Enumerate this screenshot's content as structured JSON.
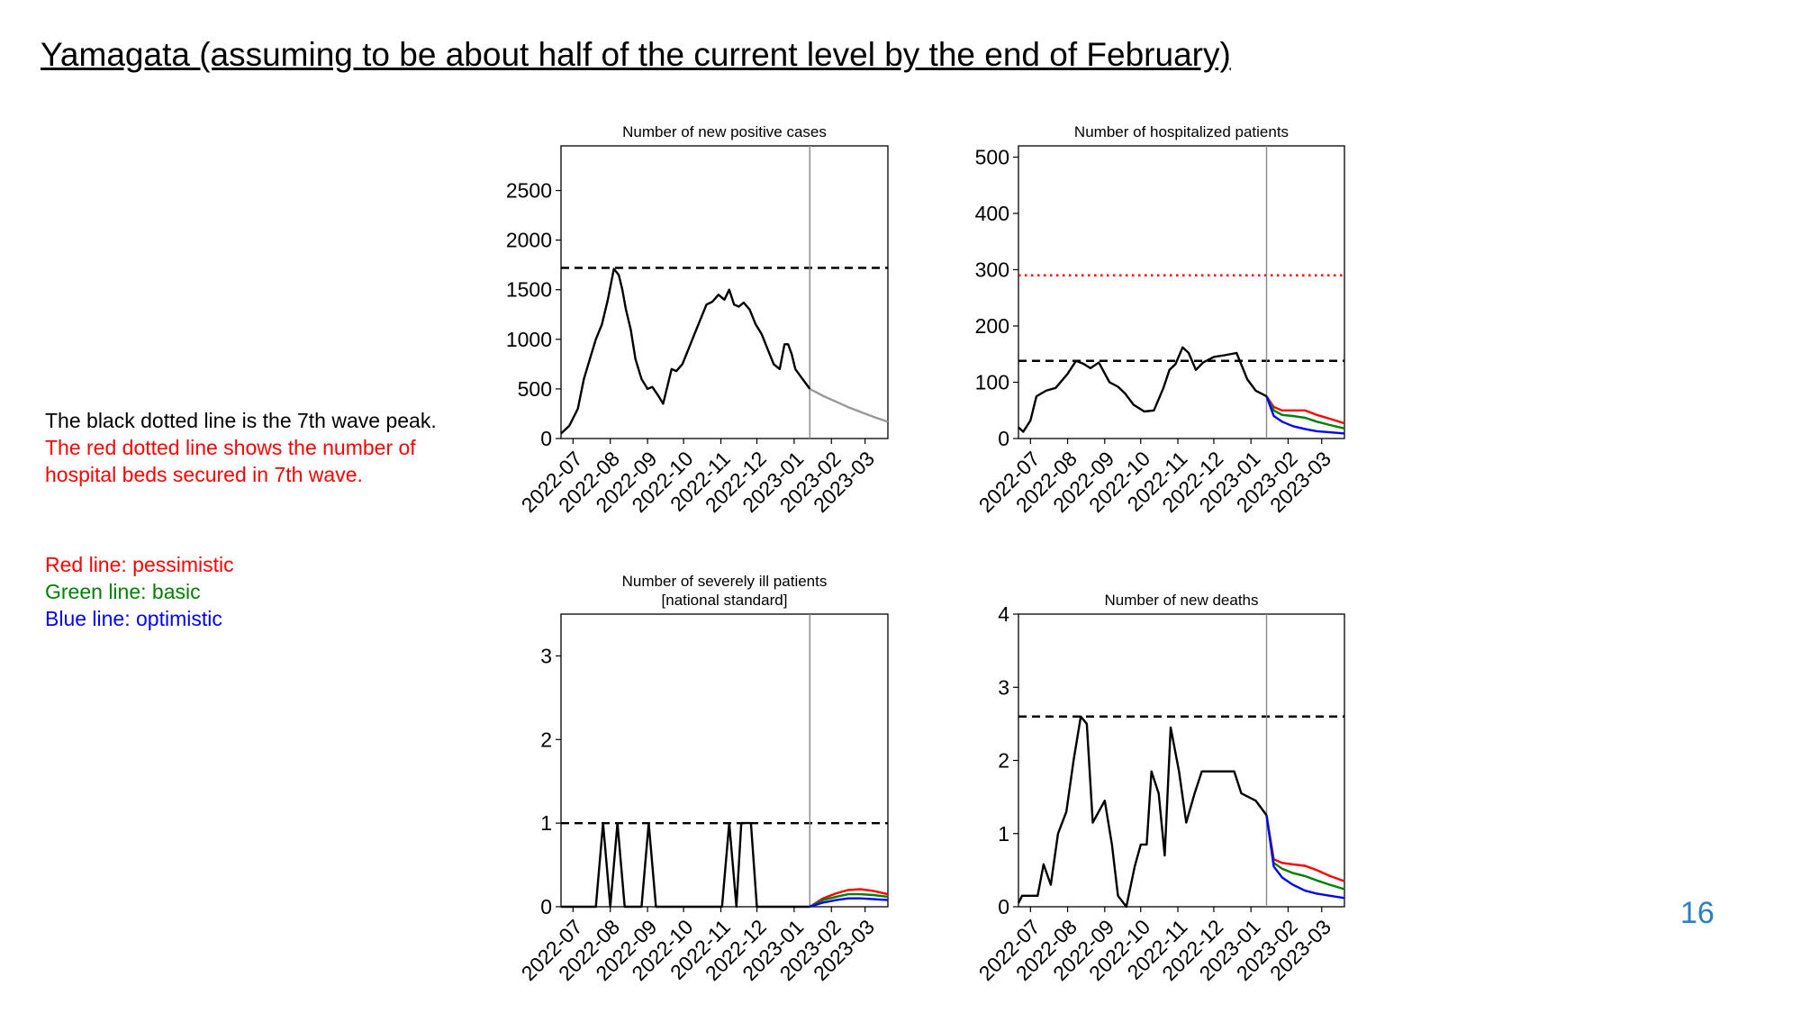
{
  "slide": {
    "title": "Yamagata (assuming to be about half of the current level by the end of February)",
    "page_number": "16"
  },
  "notes": [
    {
      "text": "The black dotted line is the 7th wave peak.",
      "color": "#000000"
    },
    {
      "text": "The red dotted line shows the number of",
      "color": "#ff0000"
    },
    {
      "text": "hospital beds secured in 7th wave.",
      "color": "#ff0000"
    }
  ],
  "legend": [
    {
      "text": "Red line: pessimistic",
      "color": "#ff0000"
    },
    {
      "text": "Green line: basic",
      "color": "#008000"
    },
    {
      "text": "Blue line: optimistic",
      "color": "#0000ff"
    }
  ],
  "colors": {
    "actual": "#000000",
    "pessimistic": "#ff0000",
    "basic": "#008000",
    "optimistic": "#0000ff",
    "forecast_gray": "#999999",
    "beds_line": "#ff0000",
    "peak_line": "#000000"
  },
  "chart_data": [
    {
      "type": "line",
      "title": [
        "Number of new positive cases"
      ],
      "x_ticks": [
        "2022-07",
        "2022-08",
        "2022-09",
        "2022-10",
        "2022-11",
        "2022-12",
        "2023-01",
        "2023-02",
        "2023-03"
      ],
      "xlim": [
        "2022-06-21",
        "2023-03-20"
      ],
      "ylim": [
        0,
        2950
      ],
      "y_ticks": [
        0,
        500,
        1000,
        1500,
        2000,
        2500
      ],
      "grid": false,
      "current_date": "2023-01-14",
      "reference_lines": [
        {
          "label": "7th wave peak",
          "value": 1720,
          "style": "dashed",
          "color": "#000000"
        }
      ],
      "actual": {
        "x": [
          "2022-06-21",
          "2022-06-28",
          "2022-07-05",
          "2022-07-10",
          "2022-07-15",
          "2022-07-20",
          "2022-07-25",
          "2022-07-30",
          "2022-08-04",
          "2022-08-08",
          "2022-08-11",
          "2022-08-14",
          "2022-08-18",
          "2022-08-22",
          "2022-08-27",
          "2022-09-01",
          "2022-09-05",
          "2022-09-10",
          "2022-09-14",
          "2022-09-18",
          "2022-09-21",
          "2022-09-25",
          "2022-09-30",
          "2022-10-05",
          "2022-10-10",
          "2022-10-15",
          "2022-10-20",
          "2022-10-25",
          "2022-10-30",
          "2022-11-04",
          "2022-11-08",
          "2022-11-12",
          "2022-11-16",
          "2022-11-20",
          "2022-11-25",
          "2022-11-30",
          "2022-12-05",
          "2022-12-10",
          "2022-12-15",
          "2022-12-20",
          "2022-12-24",
          "2022-12-27",
          "2022-12-30",
          "2023-01-02",
          "2023-01-05",
          "2023-01-08",
          "2023-01-11",
          "2023-01-14"
        ],
        "y": [
          50,
          130,
          300,
          600,
          800,
          1000,
          1150,
          1400,
          1710,
          1650,
          1500,
          1300,
          1100,
          800,
          600,
          500,
          520,
          430,
          350,
          550,
          700,
          680,
          750,
          900,
          1050,
          1200,
          1350,
          1380,
          1450,
          1400,
          1500,
          1350,
          1330,
          1370,
          1300,
          1150,
          1050,
          900,
          750,
          700,
          950,
          950,
          850,
          700,
          650,
          600,
          550,
          500
        ]
      },
      "forecast": [
        {
          "name": "forecast",
          "color": "#999999",
          "x": [
            "2023-01-14",
            "2023-01-25",
            "2023-02-05",
            "2023-02-16",
            "2023-02-27",
            "2023-03-10",
            "2023-03-20"
          ],
          "y": [
            500,
            430,
            370,
            310,
            260,
            210,
            170
          ]
        }
      ]
    },
    {
      "type": "line",
      "title": [
        "Number of hospitalized patients"
      ],
      "x_ticks": [
        "2022-07",
        "2022-08",
        "2022-09",
        "2022-10",
        "2022-11",
        "2022-12",
        "2023-01",
        "2023-02",
        "2023-03"
      ],
      "xlim": [
        "2022-06-21",
        "2023-03-20"
      ],
      "ylim": [
        0,
        520
      ],
      "y_ticks": [
        0,
        100,
        200,
        300,
        400,
        500
      ],
      "grid": false,
      "current_date": "2023-01-14",
      "reference_lines": [
        {
          "label": "7th wave peak",
          "value": 138,
          "style": "dashed",
          "color": "#000000"
        },
        {
          "label": "hospital beds secured in 7th wave",
          "value": 290,
          "style": "dotted",
          "color": "#ff0000"
        }
      ],
      "actual": {
        "x": [
          "2022-06-21",
          "2022-06-25",
          "2022-07-01",
          "2022-07-06",
          "2022-07-14",
          "2022-07-22",
          "2022-08-01",
          "2022-08-08",
          "2022-08-14",
          "2022-08-20",
          "2022-08-27",
          "2022-09-05",
          "2022-09-12",
          "2022-09-18",
          "2022-09-25",
          "2022-10-04",
          "2022-10-12",
          "2022-10-20",
          "2022-10-25",
          "2022-10-30",
          "2022-11-05",
          "2022-11-10",
          "2022-11-16",
          "2022-11-22",
          "2022-12-01",
          "2022-12-10",
          "2022-12-20",
          "2022-12-29",
          "2023-01-05",
          "2023-01-14"
        ],
        "y": [
          20,
          12,
          32,
          75,
          85,
          90,
          115,
          138,
          133,
          125,
          135,
          100,
          92,
          80,
          60,
          48,
          50,
          90,
          122,
          132,
          162,
          152,
          122,
          135,
          145,
          148,
          152,
          105,
          85,
          75
        ]
      },
      "forecast": [
        {
          "name": "pessimistic",
          "color": "#ff0000",
          "x": [
            "2023-01-14",
            "2023-01-20",
            "2023-01-27",
            "2023-02-05",
            "2023-02-15",
            "2023-02-25",
            "2023-03-08",
            "2023-03-20"
          ],
          "y": [
            75,
            56,
            50,
            50,
            50,
            42,
            35,
            27
          ]
        },
        {
          "name": "basic",
          "color": "#008000",
          "x": [
            "2023-01-14",
            "2023-01-20",
            "2023-01-27",
            "2023-02-05",
            "2023-02-15",
            "2023-02-25",
            "2023-03-08",
            "2023-03-20"
          ],
          "y": [
            75,
            50,
            42,
            40,
            37,
            30,
            24,
            18
          ]
        },
        {
          "name": "optimistic",
          "color": "#0000ff",
          "x": [
            "2023-01-14",
            "2023-01-20",
            "2023-01-27",
            "2023-02-05",
            "2023-02-15",
            "2023-02-25",
            "2023-03-08",
            "2023-03-20"
          ],
          "y": [
            75,
            40,
            30,
            22,
            17,
            13,
            11,
            9
          ]
        }
      ]
    },
    {
      "type": "line",
      "title": [
        "Number of severely ill patients",
        "[national standard]"
      ],
      "x_ticks": [
        "2022-07",
        "2022-08",
        "2022-09",
        "2022-10",
        "2022-11",
        "2022-12",
        "2023-01",
        "2023-02",
        "2023-03"
      ],
      "xlim": [
        "2022-06-21",
        "2023-03-20"
      ],
      "ylim": [
        0,
        3.5
      ],
      "y_ticks": [
        0,
        1,
        2,
        3
      ],
      "grid": false,
      "current_date": "2023-01-14",
      "reference_lines": [
        {
          "label": "7th wave peak",
          "value": 1,
          "style": "dashed",
          "color": "#000000"
        }
      ],
      "actual": {
        "x": [
          "2022-06-21",
          "2022-07-20",
          "2022-07-26",
          "2022-08-01",
          "2022-08-07",
          "2022-08-13",
          "2022-08-19",
          "2022-08-27",
          "2022-09-02",
          "2022-09-08",
          "2022-10-15",
          "2022-11-02",
          "2022-11-08",
          "2022-11-14",
          "2022-11-18",
          "2022-11-26",
          "2022-12-01",
          "2023-01-14"
        ],
        "y": [
          0,
          0,
          1,
          0,
          1,
          0,
          0,
          0,
          1,
          0,
          0,
          0,
          1,
          0,
          1,
          1,
          0,
          0
        ]
      },
      "forecast": [
        {
          "name": "pessimistic",
          "color": "#ff0000",
          "x": [
            "2023-01-14",
            "2023-01-25",
            "2023-02-05",
            "2023-02-15",
            "2023-02-25",
            "2023-03-08",
            "2023-03-20"
          ],
          "y": [
            0,
            0.1,
            0.16,
            0.2,
            0.21,
            0.19,
            0.15
          ]
        },
        {
          "name": "basic",
          "color": "#008000",
          "x": [
            "2023-01-14",
            "2023-01-25",
            "2023-02-05",
            "2023-02-15",
            "2023-02-25",
            "2023-03-08",
            "2023-03-20"
          ],
          "y": [
            0,
            0.08,
            0.12,
            0.15,
            0.15,
            0.14,
            0.12
          ]
        },
        {
          "name": "optimistic",
          "color": "#0000ff",
          "x": [
            "2023-01-14",
            "2023-01-25",
            "2023-02-05",
            "2023-02-15",
            "2023-02-25",
            "2023-03-08",
            "2023-03-20"
          ],
          "y": [
            0,
            0.05,
            0.08,
            0.1,
            0.1,
            0.09,
            0.08
          ]
        }
      ]
    },
    {
      "type": "line",
      "title": [
        "Number of new deaths"
      ],
      "x_ticks": [
        "2022-07",
        "2022-08",
        "2022-09",
        "2022-10",
        "2022-11",
        "2022-12",
        "2023-01",
        "2023-02",
        "2023-03"
      ],
      "xlim": [
        "2022-06-21",
        "2023-03-20"
      ],
      "ylim": [
        0,
        4
      ],
      "y_ticks": [
        0,
        1,
        2,
        3,
        4
      ],
      "grid": false,
      "current_date": "2023-01-14",
      "reference_lines": [
        {
          "label": "7th wave peak",
          "value": 2.6,
          "style": "dashed",
          "color": "#000000"
        }
      ],
      "actual": {
        "x": [
          "2022-06-21",
          "2022-06-24",
          "2022-07-01",
          "2022-07-07",
          "2022-07-12",
          "2022-07-18",
          "2022-07-24",
          "2022-07-31",
          "2022-08-06",
          "2022-08-12",
          "2022-08-17",
          "2022-08-22",
          "2022-09-01",
          "2022-09-07",
          "2022-09-12",
          "2022-09-19",
          "2022-09-26",
          "2022-10-01",
          "2022-10-06",
          "2022-10-10",
          "2022-10-16",
          "2022-10-21",
          "2022-10-26",
          "2022-11-02",
          "2022-11-08",
          "2022-11-15",
          "2022-11-21",
          "2022-11-28",
          "2022-12-08",
          "2022-12-18",
          "2022-12-24",
          "2023-01-05",
          "2023-01-14"
        ],
        "y": [
          0.05,
          0.15,
          0.15,
          0.15,
          0.58,
          0.3,
          1.0,
          1.3,
          2.0,
          2.6,
          2.5,
          1.15,
          1.45,
          0.85,
          0.15,
          0.0,
          0.55,
          0.85,
          0.85,
          1.85,
          1.55,
          0.7,
          2.45,
          1.85,
          1.15,
          1.55,
          1.85,
          1.85,
          1.85,
          1.85,
          1.55,
          1.45,
          1.25
        ]
      },
      "forecast": [
        {
          "name": "pessimistic",
          "color": "#ff0000",
          "x": [
            "2023-01-14",
            "2023-01-20",
            "2023-01-27",
            "2023-02-05",
            "2023-02-15",
            "2023-02-25",
            "2023-03-08",
            "2023-03-20"
          ],
          "y": [
            1.25,
            0.65,
            0.6,
            0.58,
            0.56,
            0.5,
            0.42,
            0.35
          ]
        },
        {
          "name": "basic",
          "color": "#008000",
          "x": [
            "2023-01-14",
            "2023-01-20",
            "2023-01-27",
            "2023-02-05",
            "2023-02-15",
            "2023-02-25",
            "2023-03-08",
            "2023-03-20"
          ],
          "y": [
            1.25,
            0.6,
            0.52,
            0.46,
            0.42,
            0.36,
            0.3,
            0.24
          ]
        },
        {
          "name": "optimistic",
          "color": "#0000ff",
          "x": [
            "2023-01-14",
            "2023-01-20",
            "2023-01-27",
            "2023-02-05",
            "2023-02-15",
            "2023-02-25",
            "2023-03-08",
            "2023-03-20"
          ],
          "y": [
            1.25,
            0.55,
            0.4,
            0.3,
            0.22,
            0.18,
            0.15,
            0.12
          ]
        }
      ]
    }
  ]
}
